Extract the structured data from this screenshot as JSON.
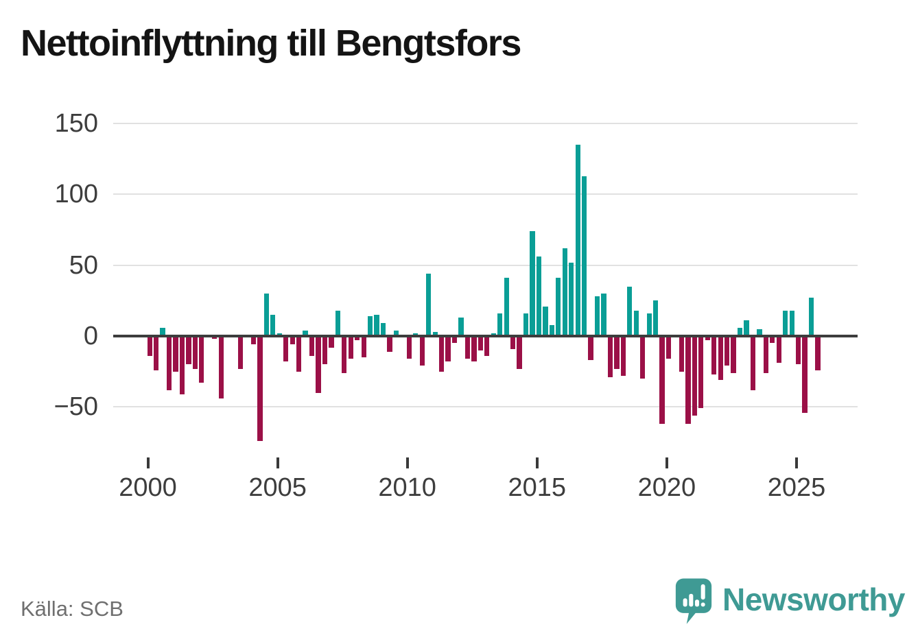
{
  "title": "Nettoinflyttning till Bengtsfors",
  "source": "Källa: SCB",
  "branding": {
    "name": "Newsworthy",
    "icon": "newsworthy-logo-icon",
    "color": "#3f9a94"
  },
  "colors": {
    "positive_bar": "#0a9e96",
    "negative_bar": "#9b1047",
    "zero_line": "#3d3d3d",
    "gridline": "#e1e1e1",
    "axis_text": "#3d3d3d",
    "title_text": "#141414",
    "source_text": "#6f6f6f"
  },
  "chart_data": {
    "type": "bar",
    "title": "Nettoinflyttning till Bengtsfors",
    "xlabel": "",
    "ylabel": "",
    "frequency": "quarterly",
    "start_period": "2000Q1",
    "end_period": "2025Q4",
    "x_tick_labels": [
      "2000",
      "2005",
      "2010",
      "2015",
      "2020",
      "2025"
    ],
    "x_tick_years": [
      2000,
      2005,
      2010,
      2015,
      2020,
      2025
    ],
    "y_tick_labels": [
      "150",
      "100",
      "50",
      "0",
      "−50"
    ],
    "y_ticks": [
      150,
      100,
      50,
      0,
      -50
    ],
    "ylim": [
      -82,
      160
    ],
    "grid": "horizontal",
    "legend": "none",
    "values": [
      -14,
      -24,
      6,
      -38,
      -25,
      -41,
      -20,
      -23,
      -33,
      0,
      -2,
      -44,
      0,
      0,
      -23,
      0,
      -6,
      -74,
      30,
      15,
      2,
      -18,
      -6,
      -25,
      4,
      -14,
      -40,
      -20,
      -8,
      18,
      -26,
      -16,
      -3,
      -15,
      14,
      15,
      9,
      -11,
      4,
      0,
      -16,
      2,
      -21,
      44,
      3,
      -25,
      -18,
      -5,
      13,
      -16,
      -18,
      -10,
      -14,
      2,
      16,
      41,
      -9,
      -23,
      16,
      74,
      56,
      21,
      8,
      41,
      62,
      52,
      135,
      113,
      -17,
      28,
      30,
      -29,
      -23,
      -28,
      35,
      18,
      -30,
      16,
      25,
      -62,
      -16,
      0,
      -25,
      -62,
      -56,
      -51,
      -3,
      -27,
      -31,
      -21,
      -26,
      6,
      11,
      -38,
      5,
      -26,
      -5,
      -19,
      18,
      18,
      -20,
      -54,
      27,
      -24
    ]
  }
}
